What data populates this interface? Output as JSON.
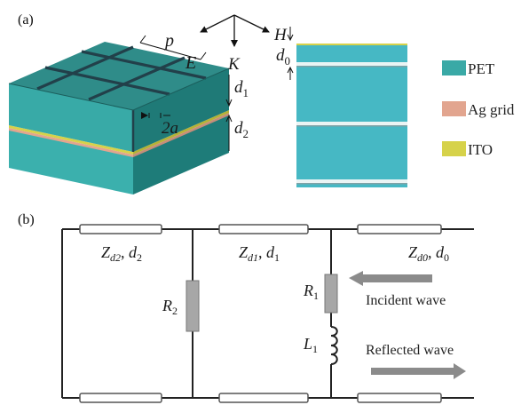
{
  "panels": {
    "a": "(a)",
    "b": "(b)"
  },
  "structure": {
    "period": "p",
    "e_field": "E",
    "h_field": "H",
    "k_vector": "K",
    "thickness_1": "d",
    "thickness_1_sub": "1",
    "thickness_2": "d",
    "thickness_2_sub": "2",
    "grid_width": "2a",
    "thickness_0": "d",
    "thickness_0_sub": "0"
  },
  "legend": [
    {
      "label": "PET",
      "color": "#3aa9a6"
    },
    {
      "label": "Ag grid",
      "color": "#e2a58f"
    },
    {
      "label": "ITO",
      "color": "#d6d24a"
    }
  ],
  "circuit": {
    "line_left": {
      "z": "Z",
      "sub": "d2",
      "d": "d",
      "dsub": "2"
    },
    "line_mid": {
      "z": "Z",
      "sub": "d1",
      "d": "d",
      "dsub": "1"
    },
    "line_right": {
      "z": "Z",
      "sub": "d0",
      "d": "d",
      "dsub": "0"
    },
    "r2": {
      "sym": "R",
      "sub": "2"
    },
    "r1": {
      "sym": "R",
      "sub": "1"
    },
    "l1": {
      "sym": "L",
      "sub": "1"
    },
    "incident": "Incident wave",
    "reflected": "Reflected wave"
  },
  "colors": {
    "pet_top": "#2e8d8a",
    "pet_front": "#38aaa7",
    "pet_side": "#1f7a77",
    "ag": "#e2a58f",
    "ito": "#d6d24a",
    "grid_line": "#23424a",
    "arrow_gray": "#8a8a8a"
  }
}
